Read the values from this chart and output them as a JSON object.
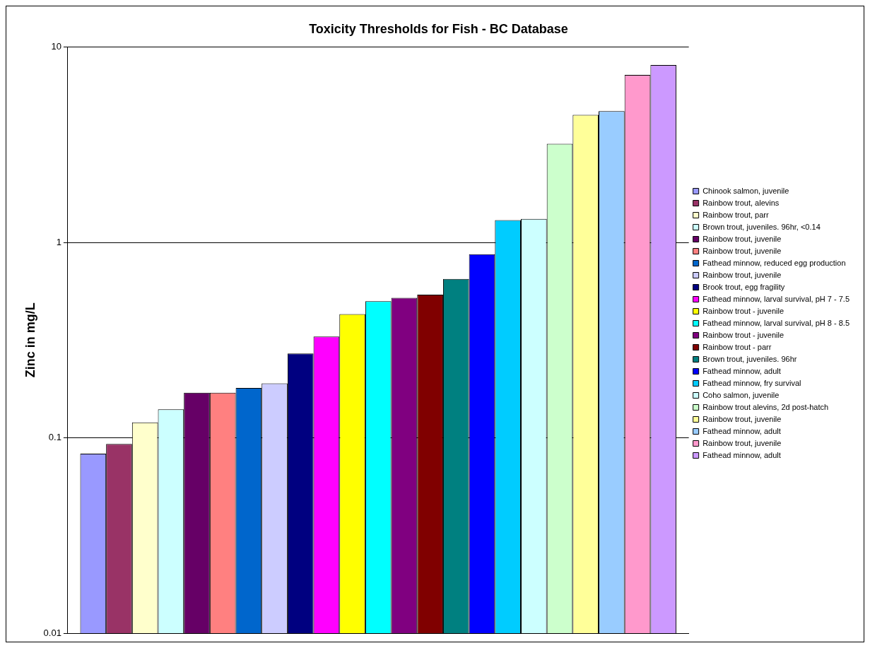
{
  "chart_data": {
    "type": "bar",
    "title": "Toxicity Thresholds for Fish - BC Database",
    "ylabel": "Zinc in mg/L",
    "categories": [
      null
    ],
    "log": true,
    "ylim": [
      0.01,
      10
    ],
    "yticks": [
      0.01,
      0.1,
      1,
      10
    ],
    "grid": "y",
    "legend": "right",
    "series": [
      {
        "name": "Chinook salmon, juvenile",
        "color": "#9999ff",
        "values": [
          0.083
        ]
      },
      {
        "name": "Rainbow trout, alevins",
        "color": "#993366",
        "values": [
          0.093
        ]
      },
      {
        "name": "Rainbow trout, parr",
        "color": "#ffffcc",
        "values": [
          0.12
        ]
      },
      {
        "name": "Brown trout, juveniles. 96hr, <0.14",
        "color": "#ccffff",
        "values": [
          0.14
        ]
      },
      {
        "name": "Rainbow trout, juvenile",
        "color": "#660066",
        "values": [
          0.17
        ]
      },
      {
        "name": "Rainbow trout, juvenile",
        "color": "#ff8080",
        "values": [
          0.17
        ]
      },
      {
        "name": "Fathead minnow, reduced egg production",
        "color": "#0066cc",
        "values": [
          0.18
        ]
      },
      {
        "name": "Rainbow trout, juvenile",
        "color": "#ccccff",
        "values": [
          0.19
        ]
      },
      {
        "name": "Brook trout, egg fragility",
        "color": "#000080",
        "values": [
          0.27
        ]
      },
      {
        "name": "Fathead minnow, larval survival, pH 7 - 7.5",
        "color": "#ff00ff",
        "values": [
          0.33
        ]
      },
      {
        "name": "Rainbow trout - juvenile",
        "color": "#ffff00",
        "values": [
          0.43
        ]
      },
      {
        "name": "Fathead minnow, larval survival, pH 8 - 8.5",
        "color": "#00ffff",
        "values": [
          0.5
        ]
      },
      {
        "name": "Rainbow trout - juvenile",
        "color": "#800080",
        "values": [
          0.52
        ]
      },
      {
        "name": "Rainbow trout - parr",
        "color": "#800000",
        "values": [
          0.54
        ]
      },
      {
        "name": "Brown trout, juveniles. 96hr",
        "color": "#008080",
        "values": [
          0.65
        ]
      },
      {
        "name": "Fathead minnow, adult",
        "color": "#0000ff",
        "values": [
          0.87
        ]
      },
      {
        "name": "Fathead minnow, fry survival",
        "color": "#00ccff",
        "values": [
          1.3
        ]
      },
      {
        "name": "Coho salmon, juvenile",
        "color": "#ccffff",
        "values": [
          1.32
        ]
      },
      {
        "name": "Rainbow trout alevins, 2d post-hatch",
        "color": "#ccffcc",
        "values": [
          3.2
        ]
      },
      {
        "name": "Rainbow trout, juvenile",
        "color": "#ffff99",
        "values": [
          4.5
        ]
      },
      {
        "name": "Fathead minnow, adult",
        "color": "#99ccff",
        "values": [
          4.7
        ]
      },
      {
        "name": "Rainbow trout, juvenile",
        "color": "#ff99cc",
        "values": [
          7.2
        ]
      },
      {
        "name": "Fathead minnow, adult",
        "color": "#cc99ff",
        "values": [
          8.1
        ]
      }
    ]
  }
}
